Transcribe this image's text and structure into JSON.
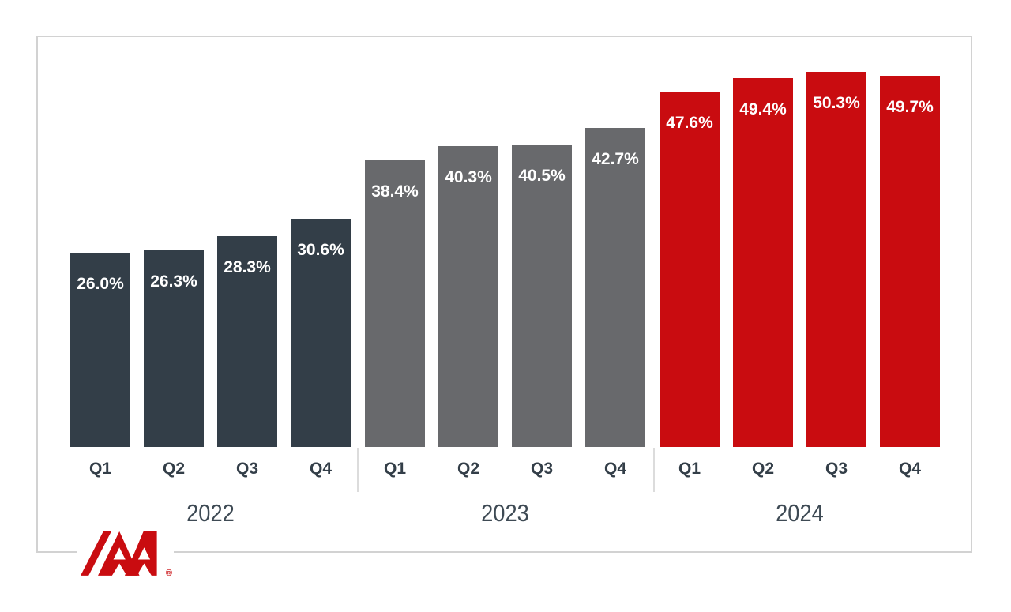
{
  "chart_data": {
    "type": "bar",
    "title": "",
    "xlabel": "",
    "ylabel": "",
    "ylim": [
      0,
      55
    ],
    "grid": false,
    "legend": "none",
    "value_label_color": "#FFFFFF",
    "categories": [
      "Q1",
      "Q2",
      "Q3",
      "Q4"
    ],
    "groups": [
      {
        "year": "2022",
        "color": "#333E48",
        "quarters": [
          "Q1",
          "Q2",
          "Q3",
          "Q4"
        ],
        "values": [
          26.0,
          26.3,
          28.3,
          30.6
        ],
        "labels": [
          "26.0%",
          "26.3%",
          "28.3%",
          "30.6%"
        ]
      },
      {
        "year": "2023",
        "color": "#68696C",
        "quarters": [
          "Q1",
          "Q2",
          "Q3",
          "Q4"
        ],
        "values": [
          38.4,
          40.3,
          40.5,
          42.7
        ],
        "labels": [
          "38.4%",
          "40.3%",
          "40.5%",
          "42.7%"
        ]
      },
      {
        "year": "2024",
        "color": "#C90C10",
        "quarters": [
          "Q1",
          "Q2",
          "Q3",
          "Q4"
        ],
        "values": [
          47.6,
          49.4,
          50.3,
          49.7
        ],
        "labels": [
          "47.6%",
          "49.4%",
          "50.3%",
          "49.7%"
        ]
      }
    ]
  },
  "colors": {
    "frame_border": "#D2D2D2",
    "group_separator": "#DCDCDC",
    "axis_text": "#333E48",
    "year_text": "#3E4A54",
    "background": "#FFFFFF"
  },
  "logo": {
    "name": "IAA",
    "registered": "®",
    "color": "#C90C10"
  }
}
